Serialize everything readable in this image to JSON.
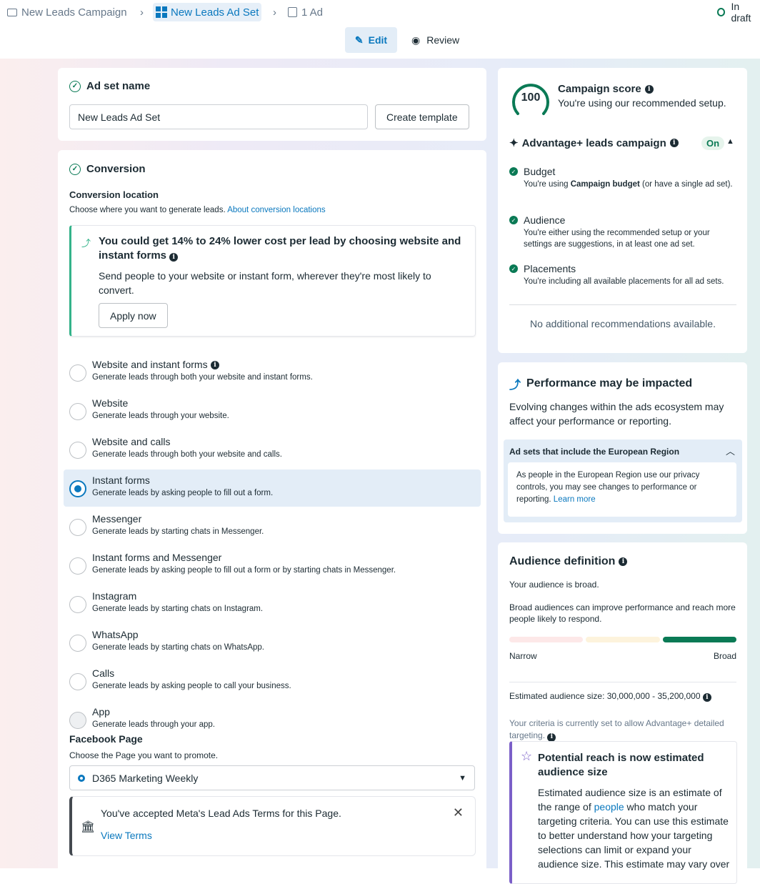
{
  "breadcrumb": {
    "campaign": "New Leads Campaign",
    "adset": "New Leads Ad Set",
    "ad": "1 Ad",
    "status": "In draft"
  },
  "modes": {
    "edit": "Edit",
    "review": "Review"
  },
  "adset_name": {
    "title": "Ad set name",
    "value": "New Leads Ad Set",
    "template_button": "Create template"
  },
  "conversion": {
    "title": "Conversion",
    "location_label": "Conversion location",
    "location_desc": "Choose where you want to generate leads.",
    "location_link": "About conversion locations",
    "tip": {
      "title": "You could get 14% to 24% lower cost per lead by choosing website and instant forms",
      "body": "Send people to your website or instant form, wherever they're most likely to convert.",
      "button": "Apply now"
    },
    "options": [
      {
        "label": "Website and instant forms",
        "desc": "Generate leads through both your website and instant forms."
      },
      {
        "label": "Website",
        "desc": "Generate leads through your website."
      },
      {
        "label": "Website and calls",
        "desc": "Generate leads through both your website and calls."
      },
      {
        "label": "Instant forms",
        "desc": "Generate leads by asking people to fill out a form."
      },
      {
        "label": "Messenger",
        "desc": "Generate leads by starting chats in Messenger."
      },
      {
        "label": "Instant forms and Messenger",
        "desc": "Generate leads by asking people to fill out a form or by starting chats in Messenger."
      },
      {
        "label": "Instagram",
        "desc": "Generate leads by starting chats on Instagram."
      },
      {
        "label": "WhatsApp",
        "desc": "Generate leads by starting chats on WhatsApp."
      },
      {
        "label": "Calls",
        "desc": "Generate leads by asking people to call your business."
      },
      {
        "label": "App",
        "desc": "Generate leads through your app."
      }
    ],
    "selected": "Instant forms",
    "page_label": "Facebook Page",
    "page_desc": "Choose the Page you want to promote.",
    "page_value": "D365 Marketing Weekly",
    "terms": {
      "text": "You've accepted Meta's Lead Ads Terms for this Page.",
      "link": "View Terms"
    }
  },
  "score": {
    "value": "100",
    "title": "Campaign score",
    "desc": "You're using our recommended setup.",
    "advantage": "Advantage+ leads campaign",
    "advantage_state": "On",
    "items": [
      {
        "title": "Budget",
        "pre": "You're using ",
        "bold": "Campaign budget",
        "post": " (or have a single ad set)."
      },
      {
        "title": "Audience",
        "pre": "You're either using the recommended setup or your settings are suggestions, in at least one ad set.",
        "bold": "",
        "post": ""
      },
      {
        "title": "Placements",
        "pre": "You're including all available placements for all ad sets.",
        "bold": "",
        "post": ""
      }
    ],
    "no_recs": "No additional recommendations available."
  },
  "performance": {
    "title": "Performance may be impacted",
    "body": "Evolving changes within the ads ecosystem may affect your performance or reporting.",
    "section": "Ad sets that include the European Region",
    "section_body": "As people in the European Region use our privacy controls, you may see changes to performance or reporting.",
    "link": "Learn more"
  },
  "audience": {
    "title": "Audience definition",
    "status": "Your audience is broad.",
    "desc": "Broad audiences can improve performance and reach more people likely to respond.",
    "meter_level": "Broad",
    "narrow": "Narrow",
    "broad": "Broad",
    "size_label": "Estimated audience size:",
    "size_value": "30,000,000 - 35,200,000",
    "criteria": "Your criteria is currently set to allow Advantage+ detailed targeting.",
    "notice": {
      "title": "Potential reach is now estimated audience size",
      "pre": "Estimated audience size is an estimate of the range of ",
      "link": "people",
      "post": " who match your targeting criteria. You can use this estimate to better understand how your targeting selections can limit or expand your audience size. This estimate may vary over"
    }
  },
  "colors": {
    "accent": "#0a78be",
    "success": "#0a7a55",
    "purple": "#7b5fc8"
  }
}
